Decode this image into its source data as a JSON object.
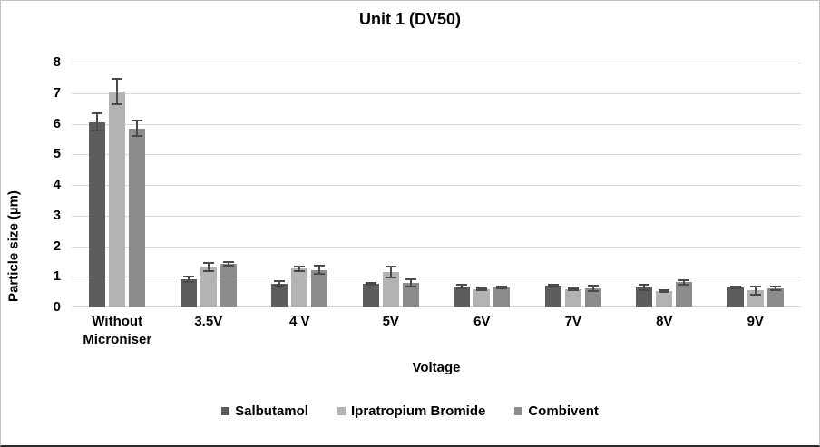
{
  "chart_data": {
    "type": "bar",
    "title": "Unit 1 (DV50)",
    "xlabel": "Voltage",
    "ylabel": "Particle size (µm)",
    "ylim": [
      0,
      8
    ],
    "ytick_step": 1,
    "ytick_labels": [
      "0",
      "1",
      "2",
      "3",
      "4",
      "5",
      "6",
      "7",
      "8"
    ],
    "grid": true,
    "legend_position": "bottom",
    "error_bars": true,
    "categories": [
      "Without Microniser",
      "3.5V",
      "4 V",
      "5V",
      "6V",
      "7V",
      "8V",
      "9V"
    ],
    "series": [
      {
        "name": "Salbutamol",
        "color": "#5d5d5d",
        "values": [
          6.05,
          0.92,
          0.78,
          0.77,
          0.68,
          0.71,
          0.65,
          0.66
        ],
        "errors": [
          0.28,
          0.09,
          0.07,
          0.03,
          0.07,
          0.03,
          0.08,
          0.03
        ]
      },
      {
        "name": "Ipratropium Bromide",
        "color": "#b3b3b3",
        "values": [
          7.05,
          1.32,
          1.27,
          1.15,
          0.6,
          0.58,
          0.54,
          0.55
        ],
        "errors": [
          0.42,
          0.13,
          0.07,
          0.18,
          0.03,
          0.03,
          0.03,
          0.12
        ]
      },
      {
        "name": "Combivent",
        "color": "#8c8c8c",
        "values": [
          5.85,
          1.43,
          1.22,
          0.8,
          0.66,
          0.62,
          0.82,
          0.62
        ],
        "errors": [
          0.25,
          0.06,
          0.13,
          0.11,
          0.03,
          0.1,
          0.08,
          0.05
        ]
      }
    ],
    "gridline_color": "#d9d9d9",
    "error_bar_color": "#4a4a4a"
  }
}
